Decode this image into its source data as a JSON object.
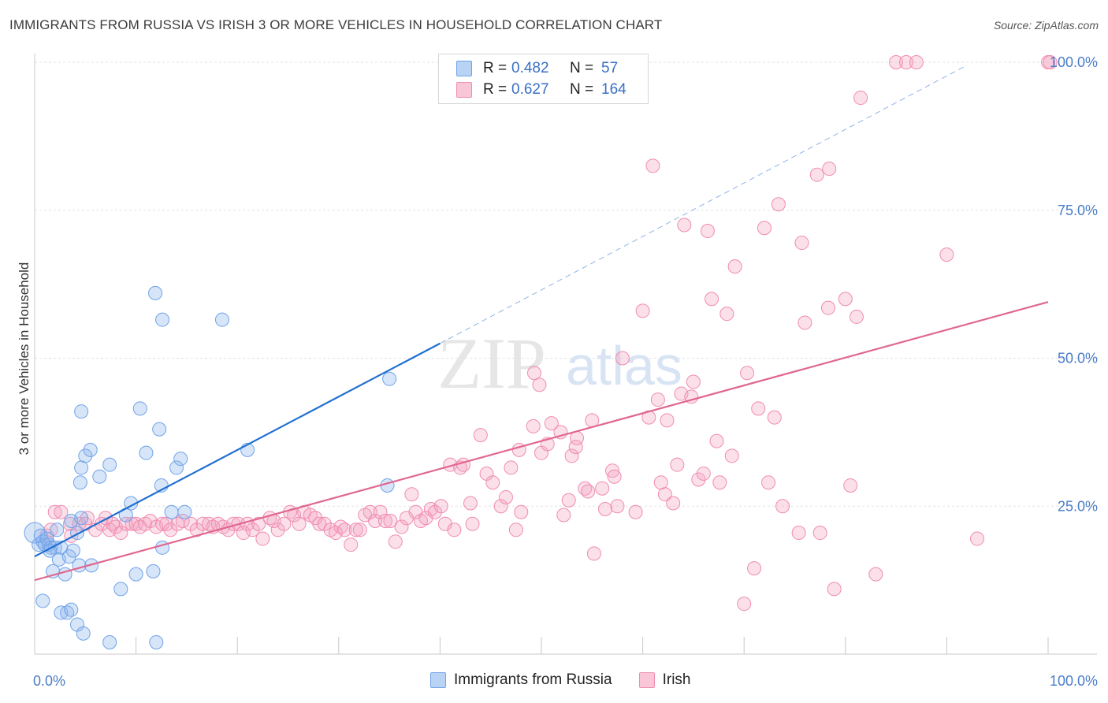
{
  "header": {
    "title": "IMMIGRANTS FROM RUSSIA VS IRISH 3 OR MORE VEHICLES IN HOUSEHOLD CORRELATION CHART",
    "source": "Source: ZipAtlas.com"
  },
  "watermark": {
    "zip": "ZIP",
    "atlas": "atlas"
  },
  "legend": {
    "rows": [
      {
        "r_label": "R =",
        "r_value": "0.482",
        "n_label": "N =",
        "n_value": "57"
      },
      {
        "r_label": "R =",
        "r_value": "0.627",
        "n_label": "N =",
        "n_value": "164"
      }
    ]
  },
  "bottom_legend": {
    "series1": "Immigrants from Russia",
    "series2": "Irish"
  },
  "chart_data": {
    "type": "scatter",
    "title": "IMMIGRANTS FROM RUSSIA VS IRISH 3 OR MORE VEHICLES IN HOUSEHOLD CORRELATION CHART",
    "xlabel": "",
    "ylabel": "3 or more Vehicles in Household",
    "xlim": [
      0,
      100
    ],
    "ylim": [
      0,
      100
    ],
    "x_tick_labels": [
      "0.0%",
      "100.0%"
    ],
    "y_tick_labels": [
      "25.0%",
      "50.0%",
      "75.0%",
      "100.0%"
    ],
    "y_ticks": [
      25,
      50,
      75,
      100
    ],
    "grid": true,
    "colors": {
      "russia": "#6fa3e8",
      "irish": "#f08cb0",
      "russia_line": "#1f6fd1",
      "irish_line": "#e0678f",
      "axis_label": "#4a7cc8"
    },
    "series": [
      {
        "name": "Immigrants from Russia",
        "trend": {
          "x": [
            0,
            40
          ],
          "y": [
            16.5,
            52.5
          ]
        },
        "trend_extension": {
          "x": [
            40,
            92
          ],
          "y": [
            52.5,
            99.5
          ]
        },
        "points": [
          [
            0,
            20.5
          ],
          [
            0.4,
            18.5
          ],
          [
            0.6,
            20
          ],
          [
            0.8,
            19
          ],
          [
            1,
            18.5
          ],
          [
            1.2,
            19.5
          ],
          [
            1.4,
            18.5
          ],
          [
            1.6,
            18
          ],
          [
            2,
            18
          ],
          [
            2.2,
            21
          ],
          [
            2.4,
            16
          ],
          [
            2.6,
            18
          ],
          [
            3,
            13.5
          ],
          [
            3.4,
            16.5
          ],
          [
            3.8,
            17.5
          ],
          [
            0.8,
            9
          ],
          [
            1.8,
            14
          ],
          [
            2.6,
            7
          ],
          [
            3.2,
            7
          ],
          [
            3.6,
            7.5
          ],
          [
            4.2,
            5
          ],
          [
            4.8,
            3.5
          ],
          [
            5.6,
            15
          ],
          [
            7.4,
            2
          ],
          [
            8.5,
            11
          ],
          [
            4.2,
            20.5
          ],
          [
            4.4,
            15
          ],
          [
            4.6,
            23
          ],
          [
            3.6,
            22.5
          ],
          [
            4.6,
            31.5
          ],
          [
            5,
            33.5
          ],
          [
            5.5,
            34.5
          ],
          [
            4.5,
            29
          ],
          [
            4.6,
            41
          ],
          [
            6.4,
            30
          ],
          [
            7.4,
            32
          ],
          [
            9,
            23.5
          ],
          [
            9.5,
            25.5
          ],
          [
            10,
            13.5
          ],
          [
            11,
            34
          ],
          [
            10.4,
            41.5
          ],
          [
            12.3,
            38
          ],
          [
            12.5,
            28.5
          ],
          [
            12.6,
            18
          ],
          [
            11.7,
            14
          ],
          [
            12.6,
            56.5
          ],
          [
            11.9,
            61
          ],
          [
            14,
            31.5
          ],
          [
            14.4,
            33
          ],
          [
            13.5,
            24
          ],
          [
            18.5,
            56.5
          ],
          [
            21,
            34.5
          ],
          [
            35,
            46.5
          ],
          [
            34.8,
            28.5
          ],
          [
            12,
            2
          ],
          [
            14.8,
            24
          ],
          [
            1.5,
            17.5
          ]
        ]
      },
      {
        "name": "Irish",
        "trend": {
          "x": [
            0,
            100
          ],
          "y": [
            12.5,
            59.5
          ]
        },
        "points": [
          [
            1.2,
            20
          ],
          [
            1.6,
            21
          ],
          [
            2,
            24
          ],
          [
            2.6,
            24
          ],
          [
            3.5,
            22
          ],
          [
            3.6,
            20
          ],
          [
            4.4,
            22
          ],
          [
            5,
            22
          ],
          [
            5.2,
            23
          ],
          [
            6,
            21
          ],
          [
            6.6,
            22
          ],
          [
            7,
            23
          ],
          [
            7.4,
            21
          ],
          [
            7.7,
            22
          ],
          [
            8,
            21.5
          ],
          [
            8.5,
            20.5
          ],
          [
            9,
            22
          ],
          [
            9.6,
            22
          ],
          [
            10,
            22
          ],
          [
            10.4,
            21.5
          ],
          [
            10.9,
            22
          ],
          [
            11.4,
            22.5
          ],
          [
            12,
            21.5
          ],
          [
            12.6,
            22
          ],
          [
            13,
            22
          ],
          [
            13.4,
            21
          ],
          [
            14.1,
            22
          ],
          [
            14.6,
            22.5
          ],
          [
            15.4,
            22
          ],
          [
            16,
            21
          ],
          [
            16.6,
            22
          ],
          [
            17.2,
            22
          ],
          [
            17.6,
            21.5
          ],
          [
            18.1,
            22
          ],
          [
            18.6,
            21.5
          ],
          [
            19.1,
            21
          ],
          [
            19.6,
            22
          ],
          [
            20.1,
            22
          ],
          [
            20.6,
            20.5
          ],
          [
            21,
            22
          ],
          [
            21.5,
            21
          ],
          [
            22.1,
            22
          ],
          [
            22.5,
            19.5
          ],
          [
            23.2,
            23
          ],
          [
            23.6,
            22.5
          ],
          [
            24,
            21
          ],
          [
            24.6,
            22
          ],
          [
            25.2,
            24
          ],
          [
            25.6,
            23.5
          ],
          [
            26.1,
            22
          ],
          [
            26.6,
            24
          ],
          [
            27.2,
            23.5
          ],
          [
            27.7,
            23
          ],
          [
            28.1,
            22
          ],
          [
            28.6,
            22
          ],
          [
            29.2,
            21
          ],
          [
            29.7,
            20.5
          ],
          [
            30.2,
            21.5
          ],
          [
            30.6,
            21
          ],
          [
            31.2,
            18.5
          ],
          [
            31.7,
            21
          ],
          [
            32.1,
            21
          ],
          [
            32.6,
            23.5
          ],
          [
            33.1,
            24
          ],
          [
            33.6,
            22.5
          ],
          [
            34.1,
            24
          ],
          [
            34.6,
            22.5
          ],
          [
            35.1,
            22.5
          ],
          [
            35.6,
            19
          ],
          [
            36.2,
            21.5
          ],
          [
            36.7,
            23
          ],
          [
            37.2,
            27
          ],
          [
            37.6,
            24
          ],
          [
            38.1,
            22.5
          ],
          [
            38.6,
            23
          ],
          [
            39.1,
            24.5
          ],
          [
            39.5,
            24
          ],
          [
            40.1,
            25
          ],
          [
            40.5,
            22
          ],
          [
            41,
            32
          ],
          [
            41.4,
            21
          ],
          [
            42,
            31.5
          ],
          [
            42.3,
            32
          ],
          [
            43.2,
            22
          ],
          [
            43,
            25.5
          ],
          [
            44,
            37
          ],
          [
            44.6,
            30.5
          ],
          [
            45.2,
            29
          ],
          [
            46,
            25
          ],
          [
            46.5,
            26.5
          ],
          [
            47,
            31.5
          ],
          [
            47.5,
            21
          ],
          [
            47.8,
            34.5
          ],
          [
            48,
            24
          ],
          [
            49.3,
            47.5
          ],
          [
            49.2,
            38.5
          ],
          [
            49.8,
            45.5
          ],
          [
            50,
            34
          ],
          [
            50.6,
            35.5
          ],
          [
            51,
            39
          ],
          [
            51.9,
            37.5
          ],
          [
            52.2,
            23.5
          ],
          [
            52.7,
            26
          ],
          [
            53,
            33.5
          ],
          [
            53.4,
            35
          ],
          [
            53.5,
            36.5
          ],
          [
            54.3,
            28
          ],
          [
            54.6,
            27.5
          ],
          [
            55,
            39.5
          ],
          [
            55.2,
            17
          ],
          [
            56,
            28
          ],
          [
            56.3,
            24.5
          ],
          [
            57,
            31
          ],
          [
            57.2,
            30
          ],
          [
            57.5,
            25
          ],
          [
            58,
            50
          ],
          [
            59.3,
            24
          ],
          [
            60,
            58
          ],
          [
            60.6,
            40
          ],
          [
            61,
            82.5
          ],
          [
            61.5,
            43
          ],
          [
            61.8,
            29
          ],
          [
            62.2,
            27
          ],
          [
            62.4,
            39.5
          ],
          [
            63,
            25.5
          ],
          [
            63.4,
            32
          ],
          [
            63.8,
            44
          ],
          [
            64.1,
            72.5
          ],
          [
            64.8,
            43.5
          ],
          [
            65,
            46
          ],
          [
            65.5,
            29.5
          ],
          [
            66,
            30.5
          ],
          [
            66.4,
            71.5
          ],
          [
            66.8,
            60
          ],
          [
            67.3,
            36
          ],
          [
            67.6,
            29
          ],
          [
            68.3,
            57.5
          ],
          [
            68.8,
            33.5
          ],
          [
            69.1,
            65.5
          ],
          [
            70,
            8.5
          ],
          [
            70.3,
            47.5
          ],
          [
            71,
            14.5
          ],
          [
            71.4,
            41.5
          ],
          [
            72,
            72
          ],
          [
            72.4,
            29
          ],
          [
            73,
            40
          ],
          [
            73.4,
            76
          ],
          [
            73.8,
            25
          ],
          [
            75.4,
            20.5
          ],
          [
            75.7,
            69.5
          ],
          [
            76,
            56
          ],
          [
            77.2,
            81
          ],
          [
            77.5,
            20.5
          ],
          [
            78.3,
            58.5
          ],
          [
            78.4,
            82
          ],
          [
            78.9,
            11
          ],
          [
            80,
            60
          ],
          [
            80.5,
            28.5
          ],
          [
            81.1,
            57
          ],
          [
            81.5,
            94
          ],
          [
            83,
            13.5
          ],
          [
            85,
            100
          ],
          [
            86,
            100
          ],
          [
            87,
            100
          ],
          [
            90,
            67.5
          ],
          [
            93,
            19.5
          ],
          [
            100,
            100
          ],
          [
            100.2,
            100
          ]
        ]
      }
    ]
  }
}
